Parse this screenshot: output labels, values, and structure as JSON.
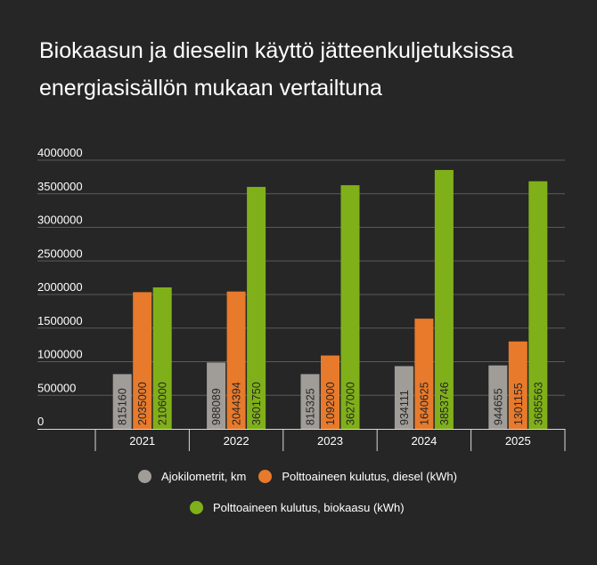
{
  "chart_data": {
    "type": "bar",
    "title_line1": "Biokaasun ja dieselin käyttö  jätteenkuljetuksissa",
    "title_line2": "energiasisällön mukaan vertailtuna",
    "categories": [
      "2021",
      "2022",
      "2023",
      "2024",
      "2025"
    ],
    "series": [
      {
        "name": "Ajokilometrit, km",
        "color": "#a09d98",
        "values": [
          815160,
          988089,
          815325,
          934111,
          944655
        ]
      },
      {
        "name": "Polttoaineen kulutus, diesel (kWh)",
        "color": "#e87a2c",
        "values": [
          2035000,
          2044394,
          1092000,
          1640625,
          1301155
        ]
      },
      {
        "name": "Polttoaineen kulutus, biokaasu (kWh)",
        "color": "#80b019",
        "values": [
          2106000,
          3601750,
          3627000,
          3853746,
          3685563
        ]
      }
    ],
    "ylim": [
      0,
      4000000
    ],
    "yticks": [
      "0",
      "500000",
      "1000000",
      "1500000",
      "2000000",
      "2500000",
      "3000000",
      "3500000",
      "4000000"
    ],
    "grid": true,
    "legend_position": "bottom"
  }
}
